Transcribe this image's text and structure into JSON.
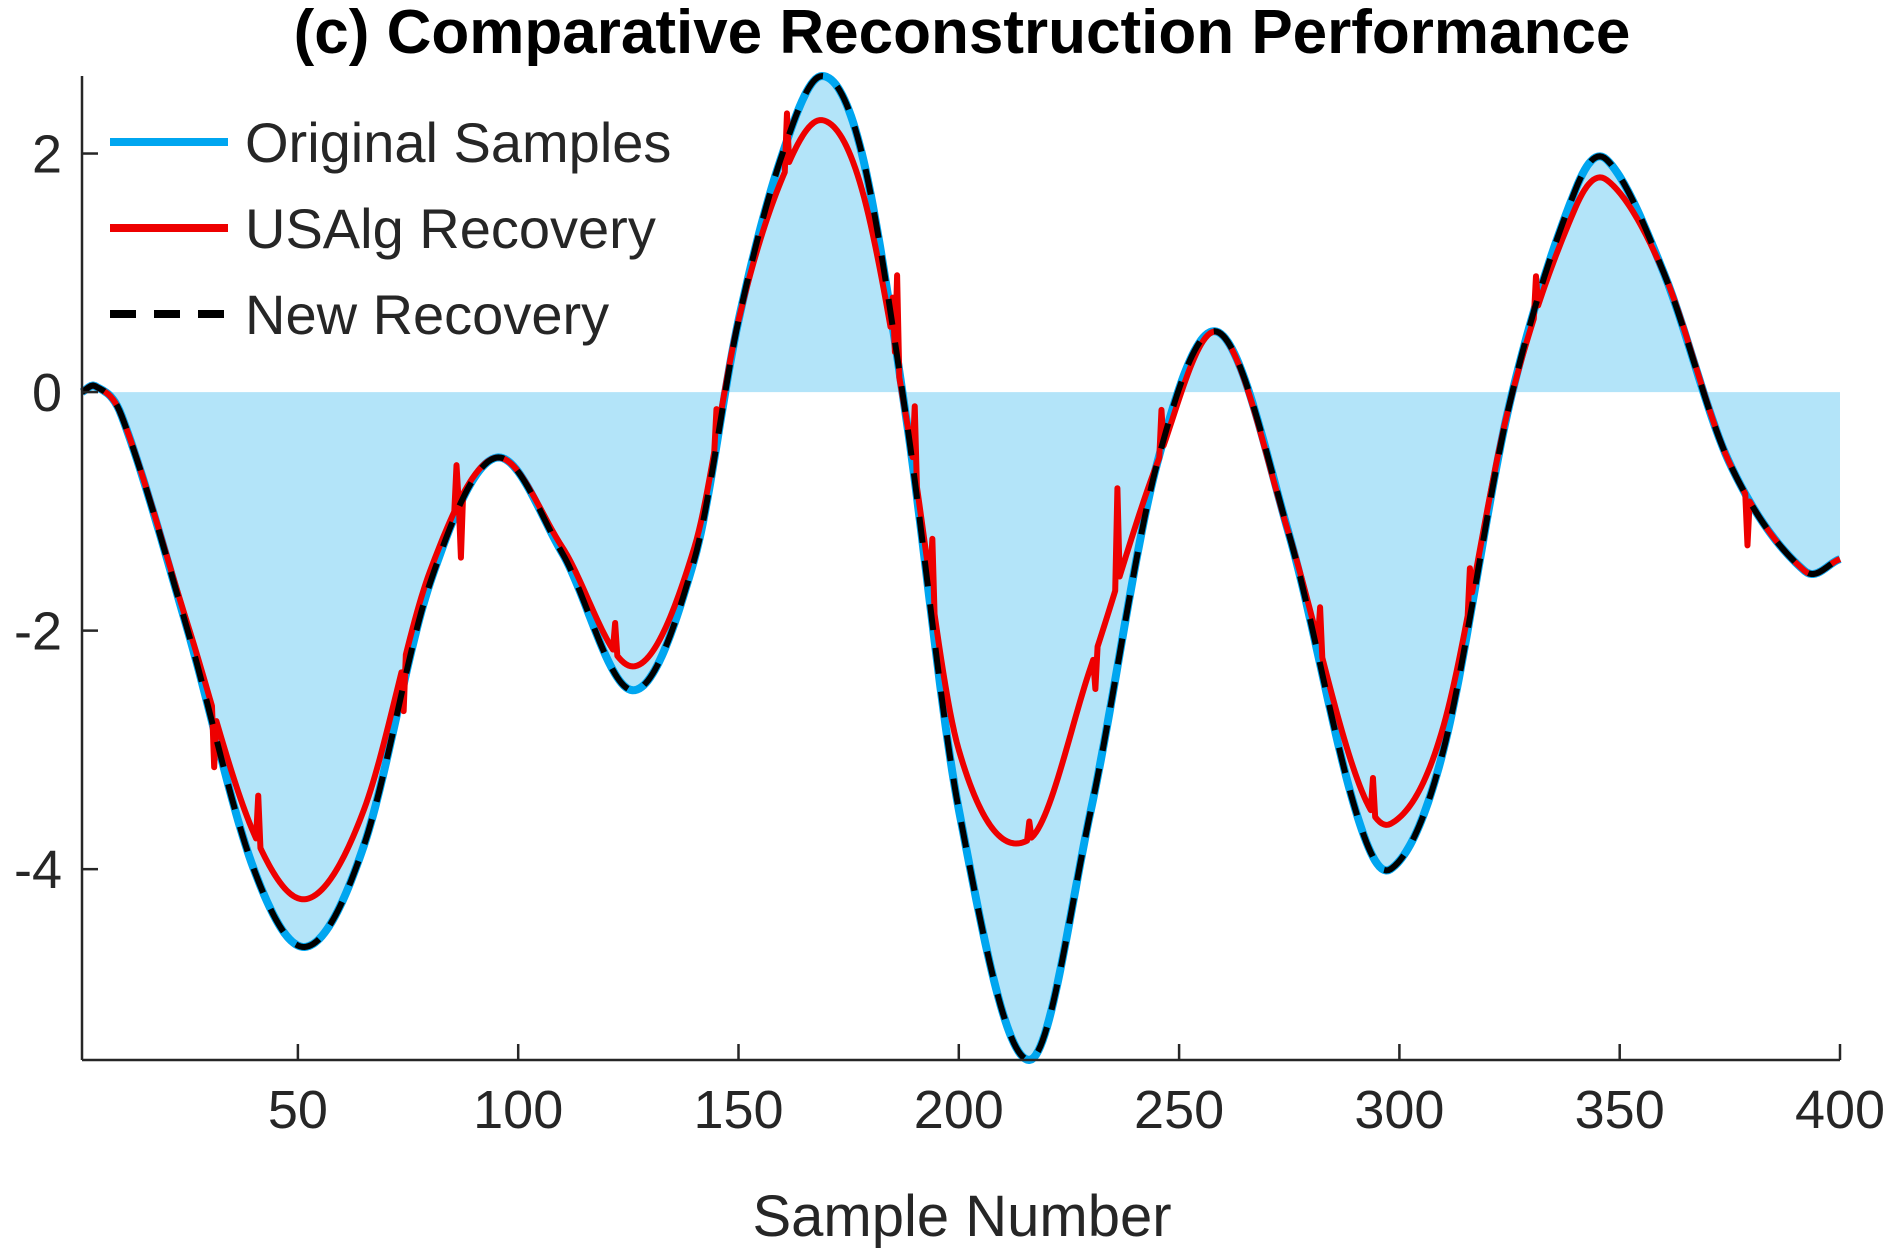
{
  "chart_data": {
    "type": "line",
    "title": "(c) Comparative Reconstruction Performance",
    "xlabel": "Sample Number",
    "ylabel": "",
    "xlim": [
      1,
      400
    ],
    "ylim": [
      -5.6,
      2.65
    ],
    "xticks": [
      50,
      100,
      150,
      200,
      250,
      300,
      350,
      400
    ],
    "yticks": [
      -4,
      -2,
      0,
      2
    ],
    "grid": false,
    "legend_position": "top-left",
    "colors": {
      "original": "#00A6F0",
      "fill": "#B3E4F9",
      "usalg": "#EE0000",
      "new": "#000000",
      "axis": "#262626"
    },
    "original_keypoints": {
      "x": [
        1,
        4,
        10,
        25,
        40,
        52,
        65,
        80,
        95,
        110,
        126,
        140,
        150,
        160,
        169,
        178,
        188,
        200,
        216,
        230,
        245,
        259,
        275,
        290,
        298,
        310,
        325,
        340,
        347,
        360,
        375,
        392,
        400
      ],
      "y": [
        0.0,
        0.05,
        -0.2,
        -2.0,
        -4.0,
        -4.65,
        -3.8,
        -1.6,
        -0.55,
        -1.35,
        -2.5,
        -1.4,
        0.6,
        2.0,
        2.65,
        2.0,
        -0.2,
        -3.5,
        -5.6,
        -3.5,
        -0.6,
        0.5,
        -1.2,
        -3.5,
        -4.0,
        -3.0,
        -0.1,
        1.7,
        1.95,
        1.0,
        -0.6,
        -1.5,
        -1.4
      ]
    },
    "usalg_keypoints": {
      "x": [
        1,
        4,
        10,
        25,
        40,
        52,
        65,
        80,
        95,
        110,
        126,
        140,
        150,
        160,
        169,
        178,
        188,
        200,
        216,
        230,
        245,
        259,
        275,
        290,
        298,
        310,
        325,
        340,
        347,
        360,
        375,
        392,
        400
      ],
      "y": [
        0.0,
        0.05,
        -0.2,
        -1.95,
        -3.7,
        -4.25,
        -3.5,
        -1.5,
        -0.55,
        -1.3,
        -2.3,
        -1.3,
        0.6,
        1.8,
        2.28,
        1.7,
        -0.2,
        -3.0,
        -3.75,
        -2.3,
        -0.6,
        0.5,
        -1.2,
        -3.2,
        -3.62,
        -2.8,
        -0.1,
        1.55,
        1.78,
        1.0,
        -0.6,
        -1.5,
        -1.4
      ]
    },
    "usalg_spikes": [
      {
        "x": 31,
        "dy": -0.45
      },
      {
        "x": 41,
        "dy": 0.4
      },
      {
        "x": 74,
        "dy": -0.4
      },
      {
        "x": 86,
        "dy": 0.35
      },
      {
        "x": 87,
        "dy": -0.5
      },
      {
        "x": 122,
        "dy": 0.25
      },
      {
        "x": 145,
        "dy": 0.25
      },
      {
        "x": 161,
        "dy": 0.45
      },
      {
        "x": 185,
        "dy": 0.35
      },
      {
        "x": 186,
        "dy": 0.75
      },
      {
        "x": 190,
        "dy": 0.55
      },
      {
        "x": 194,
        "dy": 0.5
      },
      {
        "x": 216,
        "dy": 0.15
      },
      {
        "x": 231,
        "dy": -0.3
      },
      {
        "x": 236,
        "dy": 0.8
      },
      {
        "x": 246,
        "dy": 0.35
      },
      {
        "x": 282,
        "dy": 0.35
      },
      {
        "x": 294,
        "dy": 0.3
      },
      {
        "x": 316,
        "dy": 0.3
      },
      {
        "x": 331,
        "dy": 0.3
      },
      {
        "x": 379,
        "dy": -0.4
      }
    ],
    "series": [
      {
        "name": "Original Samples",
        "key": "original",
        "style": "solid"
      },
      {
        "name": "USAlg Recovery",
        "key": "usalg",
        "style": "solid"
      },
      {
        "name": "New Recovery",
        "key": "new",
        "style": "dashed"
      }
    ]
  }
}
